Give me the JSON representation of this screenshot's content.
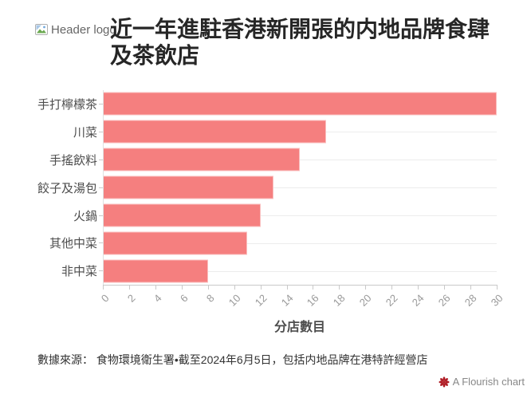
{
  "header": {
    "logo_alt": "Header logo",
    "title": "近一年進駐香港新開張的内地品牌食肆及茶飲店"
  },
  "chart_data": {
    "type": "bar",
    "orientation": "horizontal",
    "title": "近一年進駐香港新開張的内地品牌食肆及茶飲店",
    "categories": [
      "手打檸檬茶",
      "川菜",
      "手搖飲料",
      "餃子及湯包",
      "火鍋",
      "其他中菜",
      "非中菜"
    ],
    "values": [
      30,
      17,
      15,
      13,
      12,
      11,
      8
    ],
    "xlabel": "分店數目",
    "ylabel": "",
    "xlim": [
      0,
      30
    ],
    "x_ticks": [
      0,
      2,
      4,
      6,
      8,
      10,
      12,
      14,
      16,
      18,
      20,
      22,
      24,
      26,
      28,
      30
    ],
    "grid": true,
    "legend": "none"
  },
  "footer": {
    "source": "數據來源： 食物環境衛生署•截至2024年6月5日，包括内地品牌在港特許經營店",
    "attribution": "A Flourish chart"
  },
  "icons": {
    "header_logo": "broken-image-icon",
    "attribution": "flourish-flower-icon"
  },
  "colors": {
    "bar": "#f57f7f",
    "title_text": "#262626",
    "category_label": "#4d4d4d",
    "tick_label": "#999999",
    "axis": "#c9c9c9",
    "gridline": "#ececec",
    "source_text": "#333333",
    "attribution_text": "#888888",
    "flourish_icon": "#b01c25"
  }
}
